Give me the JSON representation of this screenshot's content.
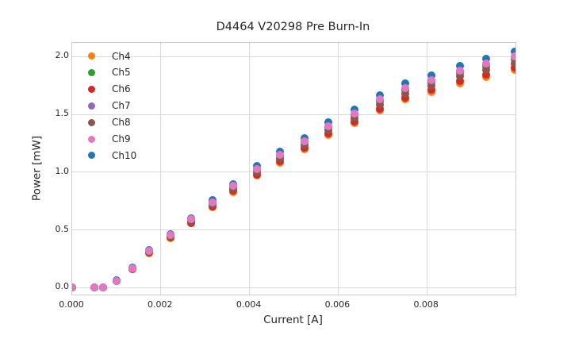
{
  "chart_data": {
    "type": "scatter",
    "title": "D4464 V20298 Pre Burn-In",
    "xlabel": "Current [A]",
    "ylabel": "Power [mW]",
    "xlim": [
      0.0,
      0.01
    ],
    "ylim": [
      -0.06,
      2.12
    ],
    "grid": true,
    "legend_position": "upper left",
    "xticks": {
      "values": [
        0.0,
        0.002,
        0.004,
        0.006,
        0.008
      ],
      "labels": [
        "0.000",
        "0.002",
        "0.004",
        "0.006",
        "0.008"
      ]
    },
    "yticks": {
      "values": [
        0.0,
        0.5,
        1.0,
        1.5,
        2.0
      ],
      "labels": [
        "0.0",
        "0.5",
        "1.0",
        "1.5",
        "2.0"
      ]
    },
    "x": [
      0.0,
      0.0005,
      0.0007,
      0.001,
      0.00136,
      0.00174,
      0.00222,
      0.00268,
      0.00316,
      0.00363,
      0.00417,
      0.00468,
      0.00524,
      0.00578,
      0.00636,
      0.00694,
      0.00751,
      0.00811,
      0.00874,
      0.00933,
      0.00998
    ],
    "series": [
      {
        "name": "Ch4",
        "color": "#ff7f0e",
        "values": [
          0,
          0,
          0,
          0.057,
          0.16,
          0.301,
          0.429,
          0.556,
          0.697,
          0.829,
          0.97,
          1.083,
          1.196,
          1.319,
          1.422,
          1.536,
          1.63,
          1.696,
          1.771,
          1.827,
          1.884
        ]
      },
      {
        "name": "Ch5",
        "color": "#2ca02c",
        "values": [
          0,
          0,
          0,
          0.059,
          0.168,
          0.316,
          0.45,
          0.583,
          0.731,
          0.869,
          1.018,
          1.136,
          1.255,
          1.383,
          1.492,
          1.61,
          1.709,
          1.778,
          1.857,
          1.917,
          1.976
        ]
      },
      {
        "name": "Ch6",
        "color": "#d62728",
        "values": [
          0,
          0,
          0,
          0.057,
          0.162,
          0.305,
          0.433,
          0.562,
          0.704,
          0.838,
          0.981,
          1.095,
          1.209,
          1.333,
          1.438,
          1.552,
          1.647,
          1.714,
          1.79,
          1.847,
          1.904
        ]
      },
      {
        "name": "Ch7",
        "color": "#9467bd",
        "values": [
          0,
          0,
          0,
          0.06,
          0.169,
          0.318,
          0.453,
          0.587,
          0.736,
          0.876,
          1.025,
          1.144,
          1.264,
          1.393,
          1.502,
          1.622,
          1.721,
          1.791,
          1.871,
          1.93,
          1.99
        ]
      },
      {
        "name": "Ch8",
        "color": "#8c564b",
        "values": [
          0,
          0,
          0,
          0.058,
          0.165,
          0.311,
          0.442,
          0.574,
          0.719,
          0.855,
          1.001,
          1.118,
          1.234,
          1.361,
          1.468,
          1.584,
          1.682,
          1.75,
          1.828,
          1.886,
          1.944
        ]
      },
      {
        "name": "Ch9",
        "color": "#e377c2",
        "values": [
          0,
          0,
          0,
          0.06,
          0.17,
          0.32,
          0.455,
          0.59,
          0.74,
          0.88,
          1.03,
          1.15,
          1.27,
          1.4,
          1.51,
          1.63,
          1.73,
          1.8,
          1.88,
          1.94,
          2.0
        ]
      },
      {
        "name": "Ch10",
        "color": "#1f77b4",
        "values": [
          0,
          0,
          0,
          0.061,
          0.174,
          0.327,
          0.465,
          0.603,
          0.756,
          0.899,
          1.053,
          1.175,
          1.298,
          1.431,
          1.543,
          1.666,
          1.768,
          1.84,
          1.921,
          1.983,
          2.044
        ]
      }
    ]
  }
}
